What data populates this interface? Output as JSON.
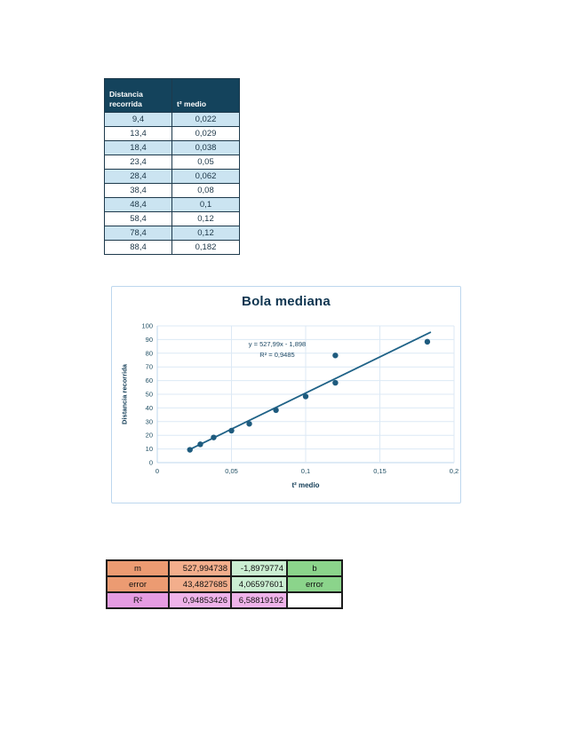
{
  "data_table": {
    "headers": [
      "Distancia recorrida",
      "t² medio"
    ],
    "header_bg": "#14435C",
    "alt_row_bg": "#CBE4F1",
    "rows": [
      [
        "9,4",
        "0,022"
      ],
      [
        "13,4",
        "0,029"
      ],
      [
        "18,4",
        "0,038"
      ],
      [
        "23,4",
        "0,05"
      ],
      [
        "28,4",
        "0,062"
      ],
      [
        "38,4",
        "0,08"
      ],
      [
        "48,4",
        "0,1"
      ],
      [
        "58,4",
        "0,12"
      ],
      [
        "78,4",
        "0,12"
      ],
      [
        "88,4",
        "0,182"
      ]
    ]
  },
  "chart_data": {
    "type": "scatter",
    "title": "Bola mediana",
    "xlabel": "t² medio",
    "ylabel": "Distancia recorrida",
    "x": [
      0.022,
      0.029,
      0.038,
      0.05,
      0.062,
      0.08,
      0.1,
      0.12,
      0.12,
      0.182
    ],
    "y": [
      9.4,
      13.4,
      18.4,
      23.4,
      28.4,
      38.4,
      48.4,
      58.4,
      78.4,
      88.4
    ],
    "xlim": [
      0,
      0.2
    ],
    "ylim": [
      0,
      100
    ],
    "x_ticks": [
      0,
      0.05,
      0.1,
      0.15,
      0.2
    ],
    "x_tick_labels": [
      "0",
      "0,05",
      "0,1",
      "0,15",
      "0,2"
    ],
    "y_ticks": [
      0,
      10,
      20,
      30,
      40,
      50,
      60,
      70,
      80,
      90,
      100
    ],
    "y_tick_labels": [
      "0",
      "10",
      "20",
      "30",
      "40",
      "50",
      "60",
      "70",
      "80",
      "90",
      "100"
    ],
    "grid": true,
    "legend": "none",
    "trendline": {
      "slope": 527.99,
      "intercept": -1.898,
      "x_start": 0.022,
      "x_end": 0.184,
      "equation": "y = 527,99x - 1,898",
      "r2": "R² = 0,9485"
    },
    "colors": {
      "marker": "#1E5B7E",
      "line": "#1F6287",
      "grid": "#DCE9F5",
      "axis": "#BDD7EE",
      "border": "#BDD7EE",
      "title": "#0F3550",
      "tick": "#1F4E63"
    }
  },
  "stats_table": {
    "rows": [
      {
        "cells": [
          {
            "text": "m",
            "bg": "#EC9B72"
          },
          {
            "text": "527,994738",
            "bg": "#F3AE8C"
          },
          {
            "text": "-1,8979774",
            "bg": "#CBEFD2"
          },
          {
            "text": "b",
            "bg": "#8BD48B"
          }
        ]
      },
      {
        "cells": [
          {
            "text": "error",
            "bg": "#EC9B72"
          },
          {
            "text": "43,4827685",
            "bg": "#F3AE8C"
          },
          {
            "text": "4,06597601",
            "bg": "#CBEFD2"
          },
          {
            "text": "error",
            "bg": "#8BD48B"
          }
        ]
      },
      {
        "cells": [
          {
            "text": "R²",
            "bg": "#E59CE2"
          },
          {
            "text": "0,94853426",
            "bg": "#EFB3EA"
          },
          {
            "text": "6,58819192",
            "bg": "#EFB3EA"
          },
          {
            "text": "",
            "bg": "#FFFFFF"
          }
        ]
      }
    ]
  }
}
